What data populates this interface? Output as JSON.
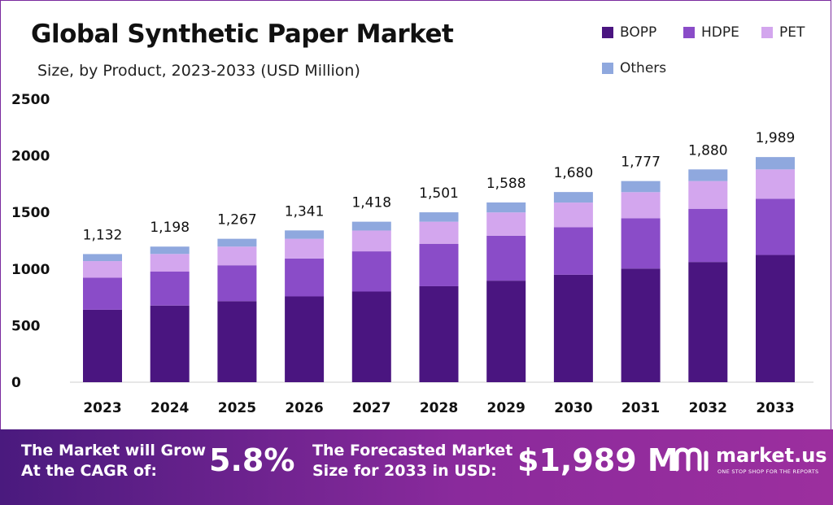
{
  "chart_data": {
    "type": "bar",
    "stacked": true,
    "title": "Global Synthetic Paper Market",
    "subtitle": "Size, by Product, 2023-2033 (USD Million)",
    "categories": [
      "2023",
      "2024",
      "2025",
      "2026",
      "2027",
      "2028",
      "2029",
      "2030",
      "2031",
      "2032",
      "2033"
    ],
    "series": [
      {
        "name": "BOPP",
        "color": "#4a1580",
        "values": [
          640,
          677,
          716,
          758,
          801,
          848,
          897,
          949,
          1004,
          1062,
          1124
        ]
      },
      {
        "name": "HDPE",
        "color": "#8a4cc8",
        "values": [
          283,
          300,
          317,
          335,
          355,
          375,
          397,
          420,
          444,
          470,
          497
        ]
      },
      {
        "name": "PET",
        "color": "#d3a6ee",
        "values": [
          147,
          156,
          165,
          174,
          184,
          195,
          206,
          218,
          231,
          245,
          259
        ]
      },
      {
        "name": "Others",
        "color": "#8fa8de",
        "values": [
          62,
          65,
          69,
          74,
          78,
          83,
          88,
          93,
          98,
          103,
          109
        ]
      }
    ],
    "totals": [
      "1,132",
      "1,198",
      "1,267",
      "1,341",
      "1,418",
      "1,501",
      "1,588",
      "1,680",
      "1,777",
      "1,880",
      "1,989"
    ],
    "yticks": [
      0,
      500,
      1000,
      1500,
      2000,
      2500
    ],
    "ylim": [
      0,
      2500
    ],
    "legend_position": "top-right",
    "grid": false
  },
  "legend": [
    {
      "label": "BOPP",
      "color": "#4a1580"
    },
    {
      "label": "HDPE",
      "color": "#8a4cc8"
    },
    {
      "label": "PET",
      "color": "#d3a6ee"
    },
    {
      "label": "Others",
      "color": "#8fa8de"
    }
  ],
  "banner": {
    "cagr_label_line1": "The Market will Grow",
    "cagr_label_line2": "At the CAGR of:",
    "cagr_value": "5.8%",
    "forecast_label_line1": "The Forecasted Market",
    "forecast_label_line2": "Size for 2033 in USD:",
    "forecast_value": "$1,989 M",
    "logo_name": "market.us",
    "logo_tagline": "ONE STOP SHOP FOR THE REPORTS"
  }
}
